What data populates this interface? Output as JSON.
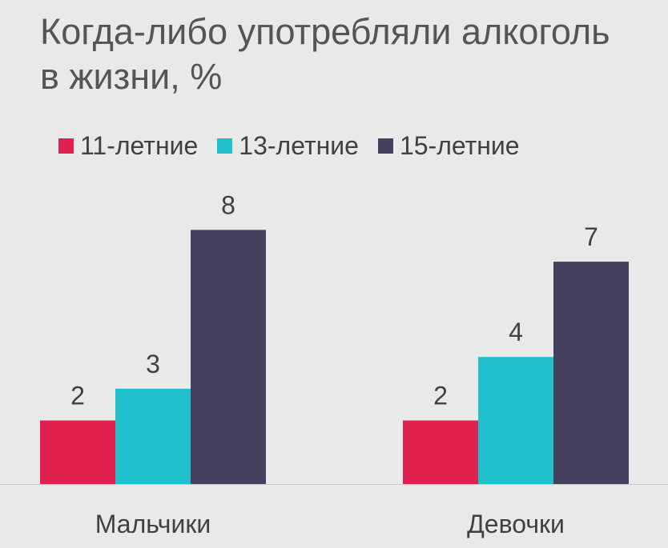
{
  "title": "Когда-либо употребляли алкоголь\nв жизни, %",
  "chart_data": {
    "type": "bar",
    "categories": [
      "Мальчики",
      "Девочки"
    ],
    "series": [
      {
        "name": "11-летние",
        "color": "#e02150",
        "values": [
          2,
          2
        ]
      },
      {
        "name": "13-летние",
        "color": "#1fbfcc",
        "values": [
          3,
          4
        ]
      },
      {
        "name": "15-летние",
        "color": "#44405e",
        "values": [
          8,
          7
        ]
      }
    ],
    "ylim": [
      0,
      10
    ],
    "grid": false,
    "legend_position": "top",
    "xlabel": "",
    "ylabel": ""
  }
}
